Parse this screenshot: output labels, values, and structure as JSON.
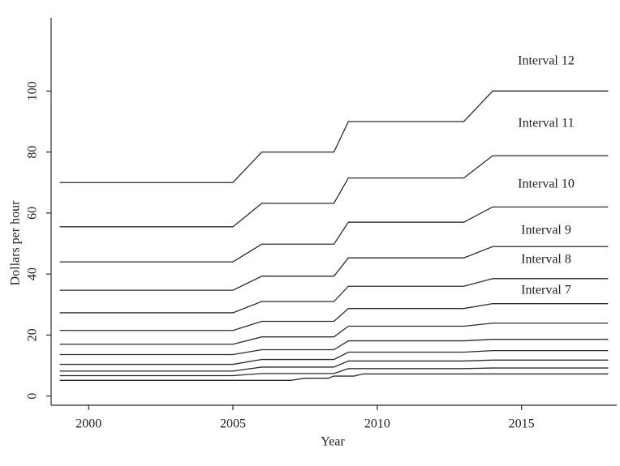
{
  "chart_data": {
    "type": "line",
    "x_label": "Year",
    "y_label": "Dollars per hour",
    "xlim": [
      1998.7,
      2018.3
    ],
    "ylim": [
      -3,
      124
    ],
    "xticks": [
      2000,
      2005,
      2010,
      2015
    ],
    "yticks": [
      0,
      20,
      40,
      60,
      80,
      100
    ],
    "color": "#2b2b2b",
    "series": [
      {
        "x": [
          1999,
          2007,
          2007.5,
          2008.3,
          2008.5,
          2009.2,
          2009.5,
          2018
        ],
        "values": [
          5.15,
          5.15,
          5.85,
          5.85,
          6.55,
          6.55,
          7.25,
          7.25
        ]
      },
      {
        "x": [
          1999,
          2005,
          2006,
          2008.5,
          2009,
          2013,
          2014,
          2018
        ],
        "values": [
          6.7,
          6.7,
          7.4,
          7.4,
          9,
          9,
          9.2,
          9.2
        ]
      },
      {
        "x": [
          1999,
          2005,
          2006,
          2008.5,
          2009,
          2013,
          2014,
          2018
        ],
        "values": [
          8.2,
          8.2,
          9.5,
          9.5,
          11.5,
          11.5,
          11.8,
          11.8
        ]
      },
      {
        "x": [
          1999,
          2005,
          2006,
          2008.5,
          2009,
          2013,
          2014,
          2018
        ],
        "values": [
          10.4,
          10.4,
          12,
          12,
          14.4,
          14.4,
          14.9,
          14.9
        ]
      },
      {
        "x": [
          1999,
          2005,
          2006,
          2008.5,
          2009,
          2013,
          2014,
          2018
        ],
        "values": [
          13.6,
          13.6,
          15.2,
          15.2,
          18.1,
          18.1,
          18.6,
          18.6
        ]
      },
      {
        "x": [
          1999,
          2005,
          2006,
          2008.5,
          2009,
          2013,
          2014,
          2018
        ],
        "values": [
          17,
          17,
          19.4,
          19.4,
          22.9,
          22.9,
          23.9,
          23.9
        ]
      },
      {
        "name": "Interval 7",
        "x": [
          1999,
          2005,
          2006,
          2008.5,
          2009,
          2013,
          2014,
          2018
        ],
        "values": [
          21.5,
          21.5,
          24.5,
          24.5,
          28.7,
          28.7,
          30.3,
          30.3
        ]
      },
      {
        "name": "Interval 8",
        "x": [
          1999,
          2005,
          2006,
          2008.5,
          2009,
          2013,
          2014,
          2018
        ],
        "values": [
          27.3,
          27.3,
          31,
          31,
          36,
          36,
          38.5,
          38.5
        ]
      },
      {
        "name": "Interval 9",
        "x": [
          1999,
          2005,
          2006,
          2008.5,
          2009,
          2013,
          2014,
          2018
        ],
        "values": [
          34.7,
          34.7,
          39.3,
          39.3,
          45.3,
          45.3,
          49,
          49
        ]
      },
      {
        "name": "Interval 10",
        "x": [
          1999,
          2005,
          2006,
          2008.5,
          2009,
          2013,
          2014,
          2018
        ],
        "values": [
          44,
          44,
          49.8,
          49.8,
          57,
          57,
          62,
          62
        ]
      },
      {
        "name": "Interval 11",
        "x": [
          1999,
          2005,
          2006,
          2008.5,
          2009,
          2013,
          2014,
          2018
        ],
        "values": [
          55.5,
          55.5,
          63.2,
          63.2,
          71.5,
          71.5,
          78.8,
          78.8
        ]
      },
      {
        "name": "Interval 12",
        "x": [
          1999,
          2005,
          2006,
          2008.5,
          2009,
          2013,
          2014,
          2018
        ],
        "values": [
          70,
          70,
          80,
          80,
          90,
          90,
          100,
          100
        ]
      }
    ]
  }
}
